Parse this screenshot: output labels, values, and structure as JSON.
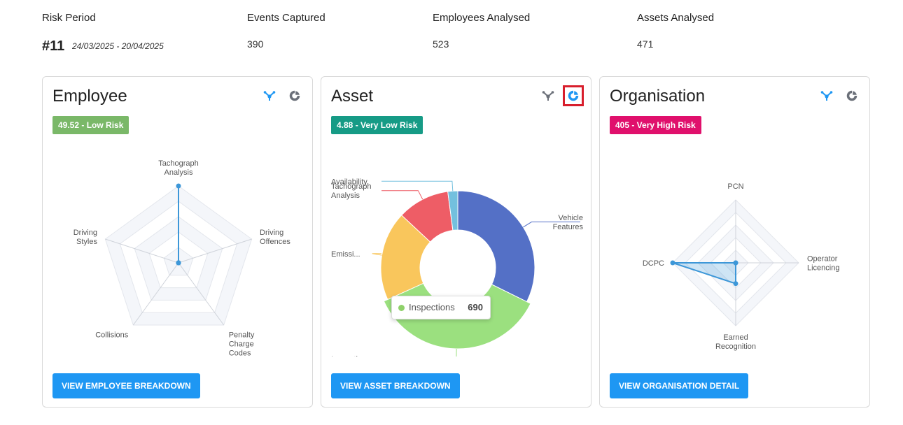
{
  "summary": {
    "risk_period_label": "Risk Period",
    "risk_period_number": "#11",
    "risk_period_dates": "24/03/2025 - 20/04/2025",
    "events_label": "Events Captured",
    "events_value": "390",
    "employees_label": "Employees Analysed",
    "employees_value": "523",
    "assets_label": "Assets Analysed",
    "assets_value": "471"
  },
  "icons": {
    "radar_view": "radar-chart-icon",
    "donut_view": "donut-chart-icon"
  },
  "colors": {
    "low": "#7ab868",
    "very_low": "#169b86",
    "very_high": "#e0106c",
    "primary_button": "#1e97f3",
    "accent": "#3d97d8"
  },
  "employee": {
    "title": "Employee",
    "badge": "49.52 - Low Risk",
    "active_view": "radar",
    "button": "VIEW EMPLOYEE BREAKDOWN",
    "chart_data": {
      "type": "radar",
      "axes": [
        {
          "label": "Tachograph Analysis",
          "lines": [
            "Tachograph",
            "Analysis"
          ],
          "value": 1.0
        },
        {
          "label": "Driving Offences",
          "lines": [
            "Driving",
            "Offences"
          ],
          "value": 0
        },
        {
          "label": "Penalty Charge Codes",
          "lines": [
            "Penalty",
            "Charge",
            "Codes"
          ],
          "value": 0
        },
        {
          "label": "Collisions",
          "lines": [
            "Collisions"
          ],
          "value": 0
        },
        {
          "label": "Driving Styles",
          "lines": [
            "Driving",
            "Styles"
          ],
          "value": 0
        }
      ],
      "max": 1.0
    }
  },
  "asset": {
    "title": "Asset",
    "badge": "4.88 - Very Low Risk",
    "active_view": "donut",
    "button": "VIEW ASSET BREAKDOWN",
    "tooltip": {
      "name": "Inspections",
      "value": "690"
    },
    "chart_data": {
      "type": "pie",
      "slices": [
        {
          "label": "Vehicle Features",
          "lines": [
            "Vehicle",
            "Features"
          ],
          "value": 620,
          "color": "#5470c6"
        },
        {
          "label": "Inspections",
          "lines": [
            "Inspections"
          ],
          "value": 690,
          "color": "#9be07f"
        },
        {
          "label": "Emissi...",
          "lines": [
            "Emissi..."
          ],
          "value": 360,
          "color": "#f9c65c"
        },
        {
          "label": "Tachograph Analysis",
          "lines": [
            "Tachograph",
            "Analysis"
          ],
          "value": 210,
          "color": "#ee5d66"
        },
        {
          "label": "Availability",
          "lines": [
            "Availability"
          ],
          "value": 40,
          "color": "#73c0de"
        }
      ]
    }
  },
  "organisation": {
    "title": "Organisation",
    "badge": "405 - Very High Risk",
    "active_view": "radar",
    "button": "VIEW ORGANISATION DETAIL",
    "chart_data": {
      "type": "radar",
      "axes": [
        {
          "label": "PCN",
          "lines": [
            "PCN"
          ],
          "value": 0
        },
        {
          "label": "Operator Licencing",
          "lines": [
            "Operator",
            "Licencing"
          ],
          "value": 0
        },
        {
          "label": "Earned Recognition",
          "lines": [
            "Earned",
            "Recognition"
          ],
          "value": 0.33
        },
        {
          "label": "DCPC",
          "lines": [
            "DCPC"
          ],
          "value": 1.0
        }
      ],
      "max": 1.0
    }
  }
}
